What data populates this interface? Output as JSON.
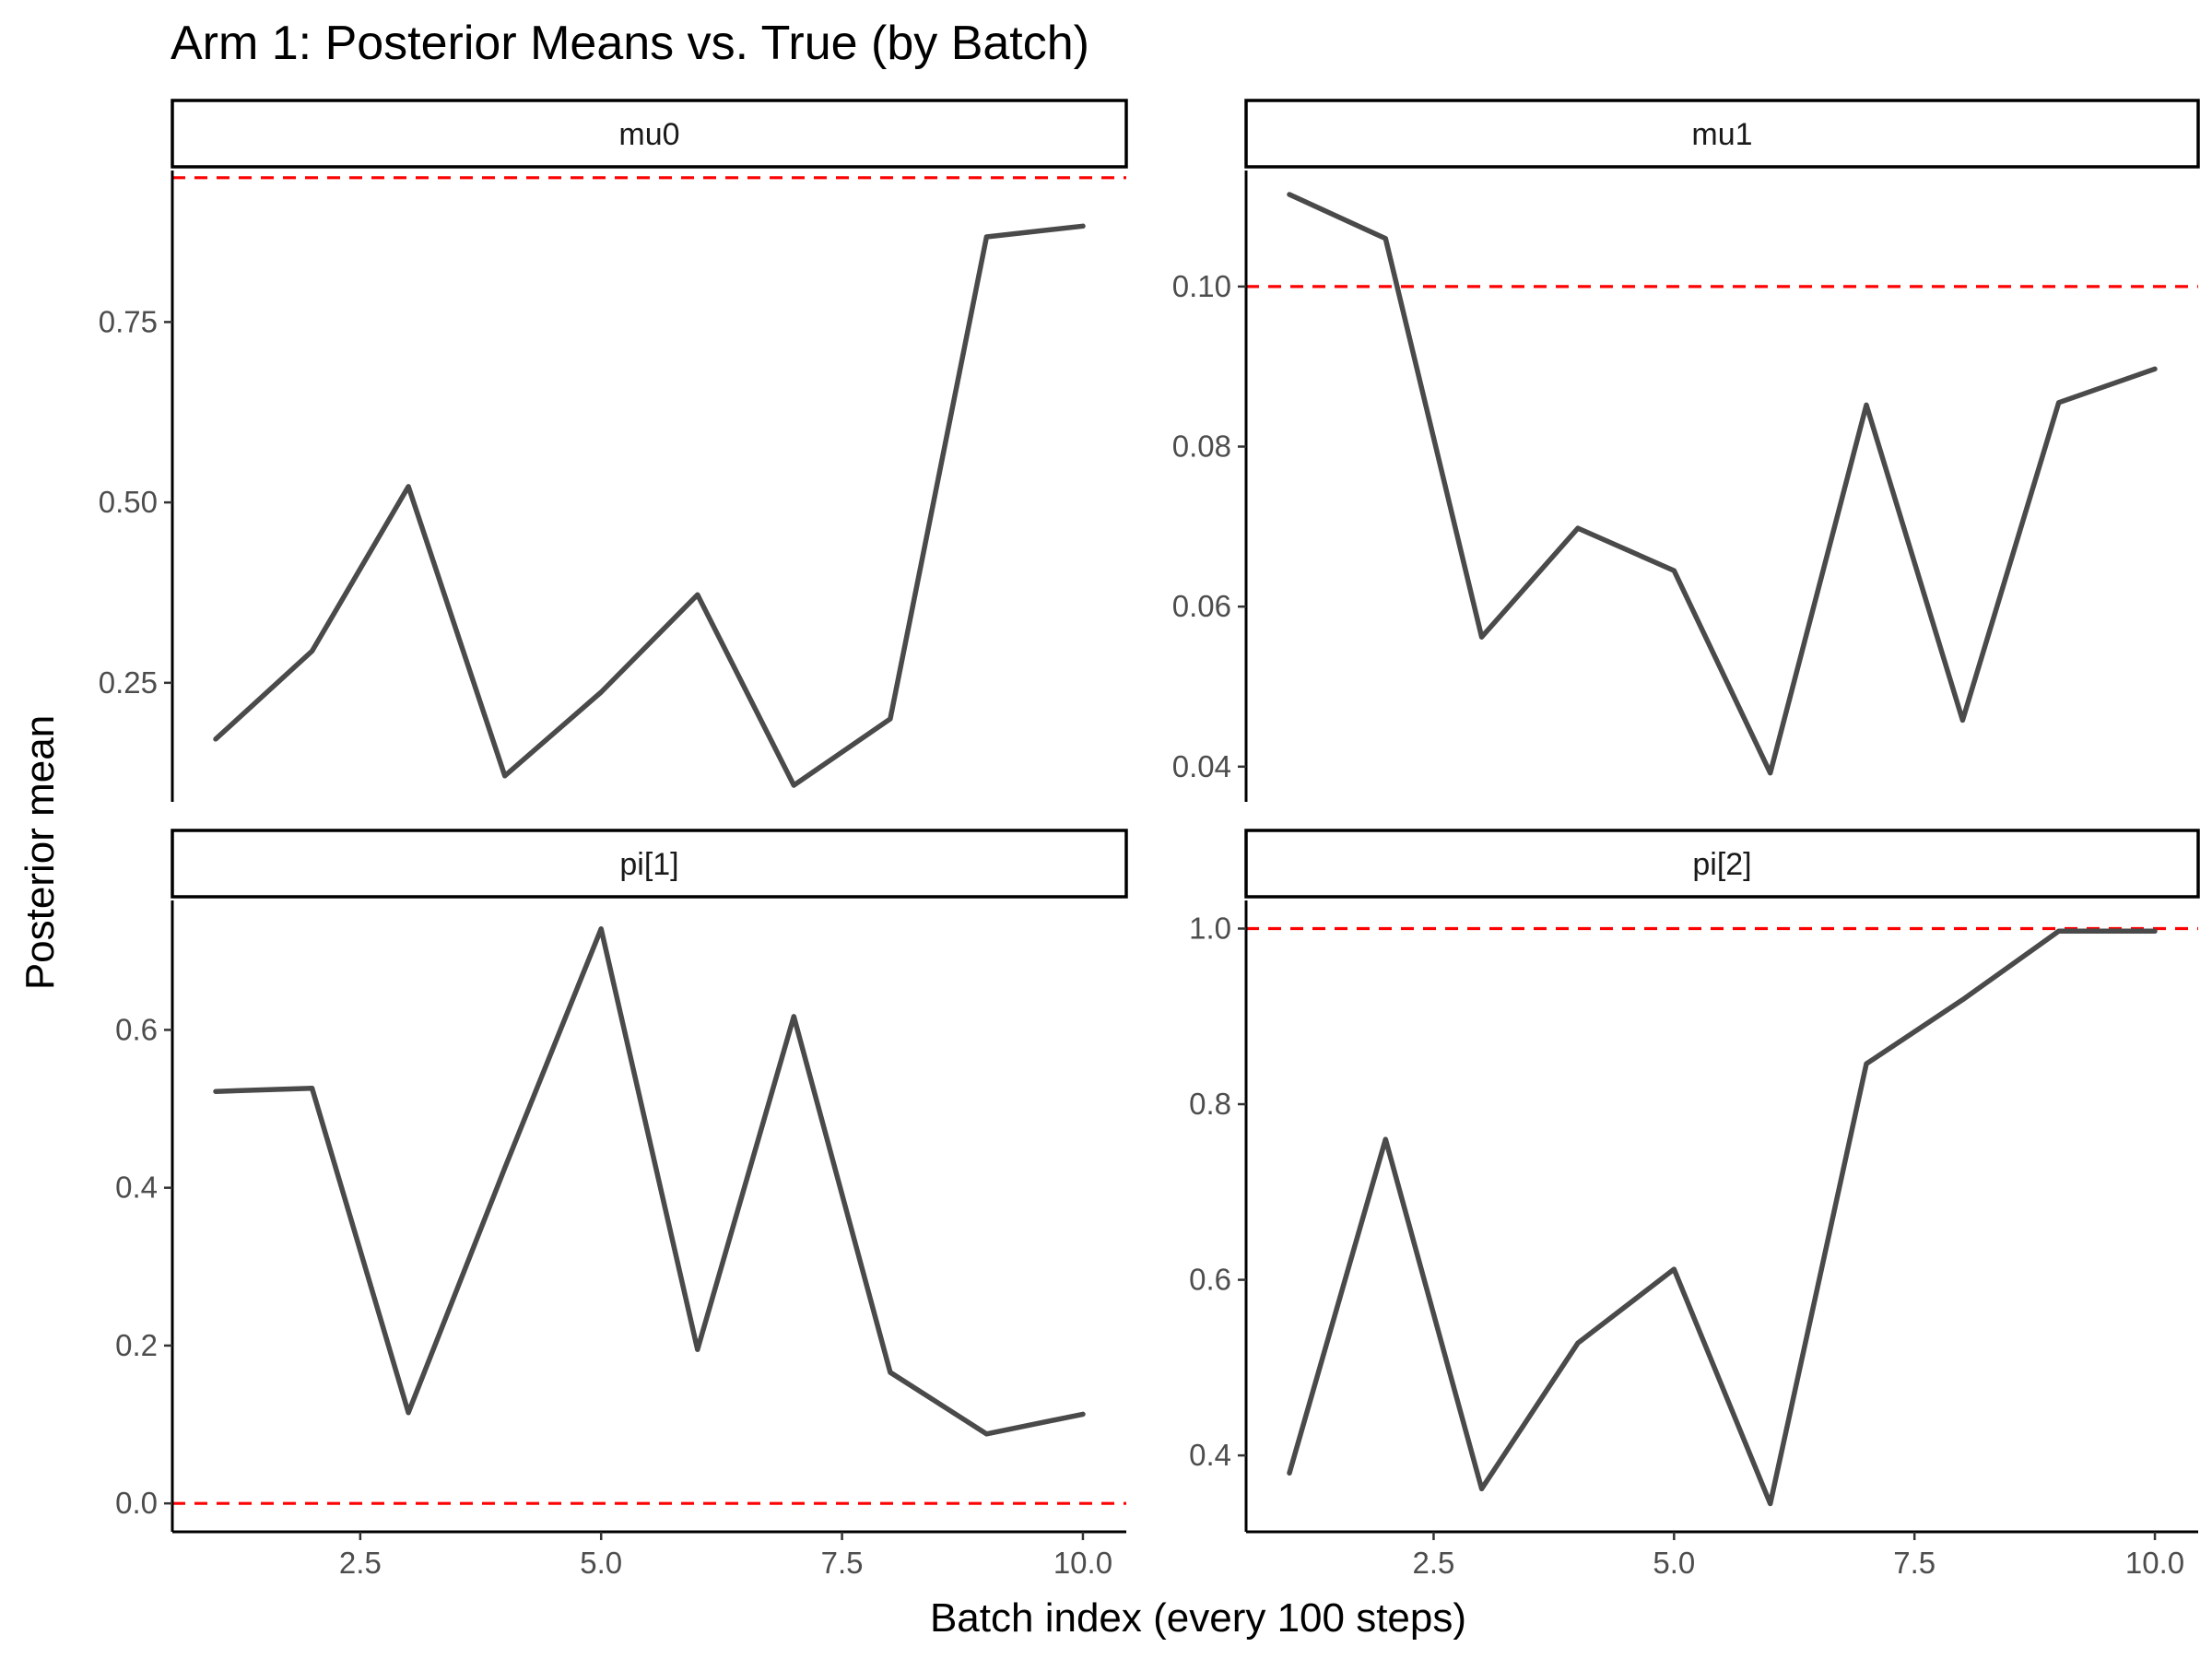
{
  "chart_data": {
    "type": "line",
    "title": "Arm 1: Posterior Means vs. True (by Batch)",
    "xlabel": "Batch index (every 100 steps)",
    "ylabel": "Posterior mean",
    "line_color": "#4a4a4a",
    "reference_line_color": "#ff0000",
    "reference_line_style": "dashed",
    "x_ticks": [
      "2.5",
      "5.0",
      "7.5",
      "10.0"
    ],
    "x_tick_values": [
      2.5,
      5.0,
      7.5,
      10.0
    ],
    "xlim": [
      0.55,
      10.45
    ],
    "panels": [
      {
        "name": "mu0",
        "x": [
          1,
          2,
          3,
          4,
          5,
          6,
          7,
          8,
          9,
          10
        ],
        "y": [
          0.172,
          0.294,
          0.522,
          0.121,
          0.237,
          0.372,
          0.108,
          0.2,
          0.868,
          0.883
        ],
        "true_value": 0.95,
        "ylim": [
          0.085,
          0.96
        ],
        "y_ticks": [
          "0.25",
          "0.50",
          "0.75"
        ],
        "y_tick_values": [
          0.25,
          0.5,
          0.75
        ]
      },
      {
        "name": "mu1",
        "x": [
          1,
          2,
          3,
          4,
          5,
          6,
          7,
          8,
          9,
          10
        ],
        "y": [
          0.1115,
          0.106,
          0.0562,
          0.0698,
          0.0645,
          0.0392,
          0.0852,
          0.0458,
          0.0855,
          0.0897
        ],
        "true_value": 0.1,
        "ylim": [
          0.0356,
          0.1145
        ],
        "y_ticks": [
          "0.04",
          "0.06",
          "0.08",
          "0.10"
        ],
        "y_tick_values": [
          0.04,
          0.06,
          0.08,
          0.1
        ]
      },
      {
        "name": "pi[1]",
        "x": [
          1,
          2,
          3,
          4,
          5,
          6,
          7,
          8,
          9,
          10
        ],
        "y": [
          0.522,
          0.526,
          0.115,
          0.425,
          0.728,
          0.195,
          0.617,
          0.166,
          0.088,
          0.113
        ],
        "true_value": 0.0,
        "ylim": [
          -0.036,
          0.764
        ],
        "y_ticks": [
          "0.0",
          "0.2",
          "0.4",
          "0.6"
        ],
        "y_tick_values": [
          0.0,
          0.2,
          0.4,
          0.6
        ]
      },
      {
        "name": "pi[2]",
        "x": [
          1,
          2,
          3,
          4,
          5,
          6,
          7,
          8,
          9,
          10
        ],
        "y": [
          0.38,
          0.76,
          0.362,
          0.528,
          0.612,
          0.345,
          0.846,
          0.919,
          0.997,
          0.997
        ],
        "true_value": 1.0,
        "ylim": [
          0.313,
          1.032
        ],
        "y_ticks": [
          "0.4",
          "0.6",
          "0.8",
          "1.0"
        ],
        "y_tick_values": [
          0.4,
          0.6,
          0.8,
          1.0
        ]
      }
    ]
  }
}
